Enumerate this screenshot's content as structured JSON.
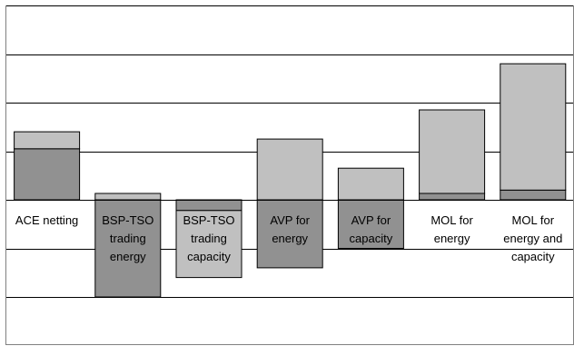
{
  "chart_data": {
    "type": "bar",
    "stacked": true,
    "grid": "horizontal",
    "gridline_values": [
      -2,
      -1,
      0,
      1,
      2,
      3,
      4
    ],
    "ylim": [
      -2.4,
      4.0
    ],
    "categories": [
      [
        "ACE netting"
      ],
      [
        "BSP-TSO",
        "trading",
        "energy"
      ],
      [
        "BSP-TSO",
        "trading",
        "capacity"
      ],
      [
        "AVP for",
        "energy"
      ],
      [
        "AVP for",
        "capacity"
      ],
      [
        "MOL for",
        "energy"
      ],
      [
        "MOL for",
        "energy and",
        "capacity"
      ]
    ],
    "bars": [
      {
        "label_color": "#000000",
        "segments": [
          {
            "from": 0,
            "to": 1.05,
            "color": "#919191"
          },
          {
            "from": 1.05,
            "to": 1.4,
            "color": "#c0c0c0"
          }
        ]
      },
      {
        "label_color": "#000000",
        "segments": [
          {
            "from": 0,
            "to": 0.13,
            "color": "#c0c0c0"
          },
          {
            "from": 0,
            "to": -2.0,
            "color": "#919191"
          }
        ]
      },
      {
        "label_color": "#000000",
        "segments": [
          {
            "from": 0,
            "to": -0.22,
            "color": "#919191"
          },
          {
            "from": -0.22,
            "to": -1.6,
            "color": "#c0c0c0"
          }
        ]
      },
      {
        "label_color": "#000000",
        "segments": [
          {
            "from": 0,
            "to": 1.25,
            "color": "#c0c0c0"
          },
          {
            "from": 0,
            "to": -1.4,
            "color": "#919191"
          }
        ]
      },
      {
        "label_color": "#000000",
        "segments": [
          {
            "from": 0,
            "to": 0.65,
            "color": "#c0c0c0"
          },
          {
            "from": 0,
            "to": -1.0,
            "color": "#919191"
          }
        ]
      },
      {
        "label_color": "#000000",
        "segments": [
          {
            "from": 0,
            "to": 0.13,
            "color": "#919191"
          },
          {
            "from": 0.13,
            "to": 1.85,
            "color": "#c0c0c0"
          }
        ]
      },
      {
        "label_color": "#000000",
        "segments": [
          {
            "from": 0,
            "to": 0.2,
            "color": "#919191"
          },
          {
            "from": 0.2,
            "to": 2.8,
            "color": "#c0c0c0"
          }
        ]
      }
    ],
    "colors": {
      "dark": "#919191",
      "light": "#c0c0c0",
      "grid": "#000000",
      "frame": "#808080"
    }
  }
}
